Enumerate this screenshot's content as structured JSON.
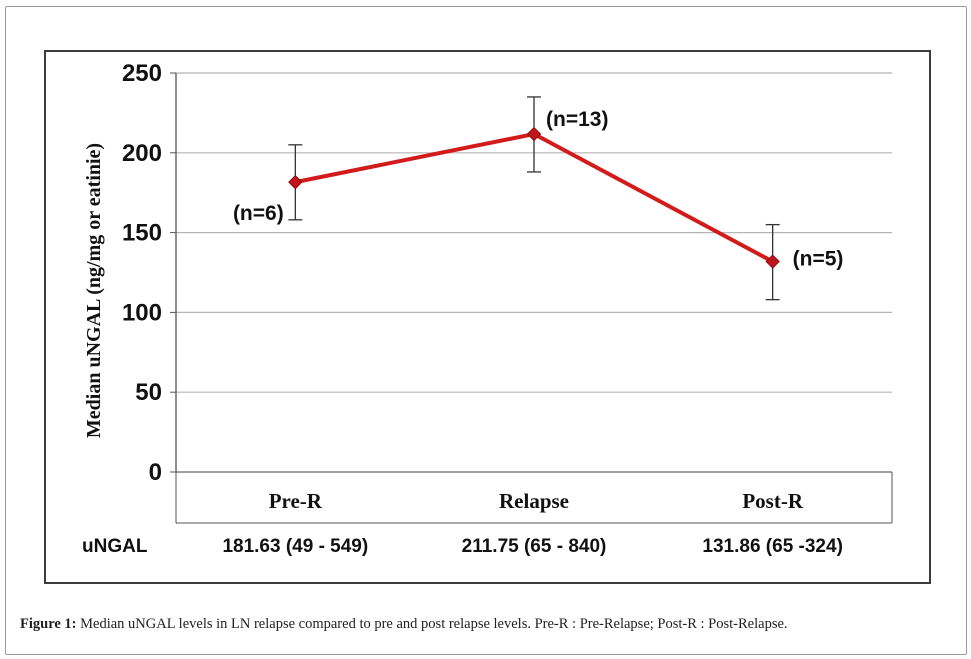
{
  "caption": {
    "label": "Figure 1:",
    "text": "Median uNGAL levels in LN relapse compared to pre and post relapse levels. Pre-R : Pre-Relapse; Post-R : Post-Relapse."
  },
  "chart_data": {
    "type": "line",
    "ylabel": "Median uNGAL (ng/mg or eatinie)",
    "ylim": [
      0,
      250
    ],
    "yticks": [
      0,
      50,
      100,
      150,
      200,
      250
    ],
    "grid": true,
    "categories": [
      "Pre-R",
      "Relapse",
      "Post-R"
    ],
    "series": [
      {
        "values": [
          181.63,
          211.75,
          131.86
        ],
        "error_low": [
          158,
          188,
          108
        ],
        "error_high": [
          205,
          235,
          155
        ],
        "color": "#d21b1b"
      }
    ],
    "annotations": [
      "(n=6)",
      "(n=13)",
      "(n=5)"
    ],
    "table": {
      "row_label": "uNGAL",
      "cells": [
        "181.63 (49 - 549)",
        "211.75 (65 - 840)",
        "131.86 (65 -324)"
      ]
    }
  }
}
